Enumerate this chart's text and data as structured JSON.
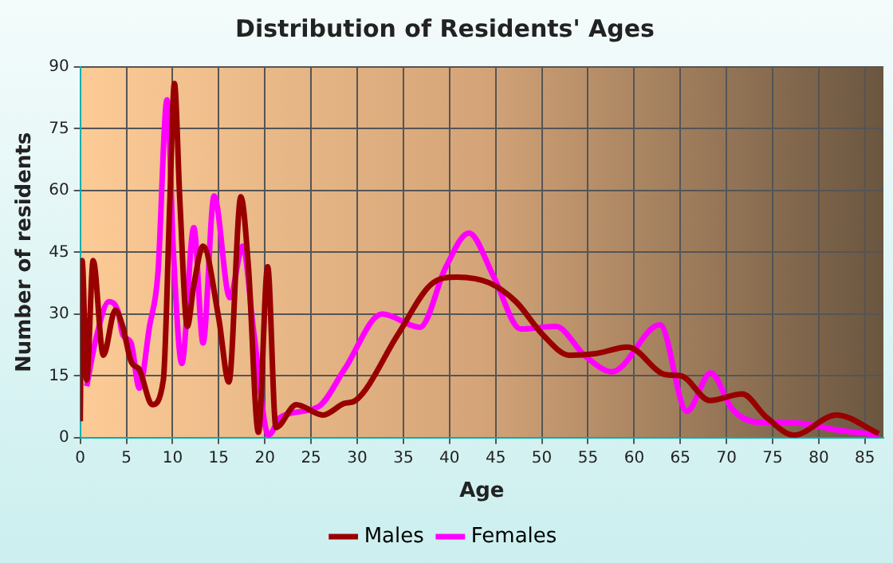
{
  "chart_data": {
    "type": "line",
    "title": "Distribution of Residents' Ages",
    "xlabel": "Age",
    "ylabel": "Number of residents",
    "xlim": [
      0,
      87
    ],
    "xticks": [
      0,
      5,
      10,
      15,
      20,
      25,
      30,
      35,
      40,
      45,
      50,
      55,
      60,
      65,
      70,
      75,
      80,
      85
    ],
    "ylim": [
      0,
      90
    ],
    "yticks": [
      0,
      15,
      30,
      45,
      60,
      75,
      90
    ],
    "grid": true,
    "legend": "bottom",
    "marker": "none",
    "line_style": "solid",
    "series": [
      {
        "name": "Males",
        "color": "#990000",
        "x": [
          0,
          0.2,
          0.7,
          1.4,
          2.5,
          3.8,
          4.6,
          5.5,
          6.4,
          7.8,
          9,
          9.7,
          10.2,
          10.8,
          11.6,
          12.3,
          13.3,
          15,
          16.1,
          17.4,
          18.2,
          19.3,
          20.3,
          21.2,
          23.4,
          26.3,
          28.6,
          29.8,
          34.4,
          37.9,
          40.8,
          44.3,
          47.2,
          50.1,
          53,
          55.8,
          59.3,
          63.4,
          65.1,
          68.2,
          71.7,
          74.3,
          77.3,
          81.9,
          86.5
        ],
        "values": [
          4,
          43,
          14,
          43,
          20,
          31,
          27,
          18.5,
          16.5,
          8,
          14,
          57,
          86,
          57,
          27,
          37,
          46.5,
          29,
          13.5,
          58.5,
          42,
          1.3,
          41.5,
          2.5,
          8,
          5.5,
          8.3,
          9,
          25,
          37,
          39,
          37.6,
          33,
          25,
          20,
          20.4,
          22,
          15.3,
          15,
          9,
          10.6,
          5,
          0.6,
          5.5,
          1
        ]
      },
      {
        "name": "Females",
        "color": "#ff00ff",
        "x": [
          0.7,
          1.7,
          3.1,
          4.1,
          4.6,
          5.5,
          6.4,
          7.5,
          8.4,
          9.4,
          10.1,
          11,
          12.3,
          13.3,
          14.5,
          16.2,
          17.6,
          18.8,
          20.4,
          21.7,
          25.8,
          28.6,
          32.7,
          36.8,
          39.6,
          42.1,
          44.8,
          47.7,
          51.5,
          54.7,
          57.6,
          62.8,
          65.7,
          68.3,
          70.6,
          73.2,
          77.3,
          81.9,
          86.5
        ],
        "values": [
          12.5,
          24,
          33,
          30.6,
          25,
          23,
          12,
          27,
          39.5,
          82,
          44.6,
          18,
          51,
          23,
          58.7,
          34,
          46.5,
          25.5,
          0.6,
          5,
          7.5,
          16.5,
          30,
          26.8,
          41.4,
          49.7,
          39,
          26.4,
          27,
          19.8,
          16,
          27.4,
          6.4,
          15.7,
          7,
          3.8,
          3.6,
          1.9,
          0.6
        ]
      }
    ]
  }
}
